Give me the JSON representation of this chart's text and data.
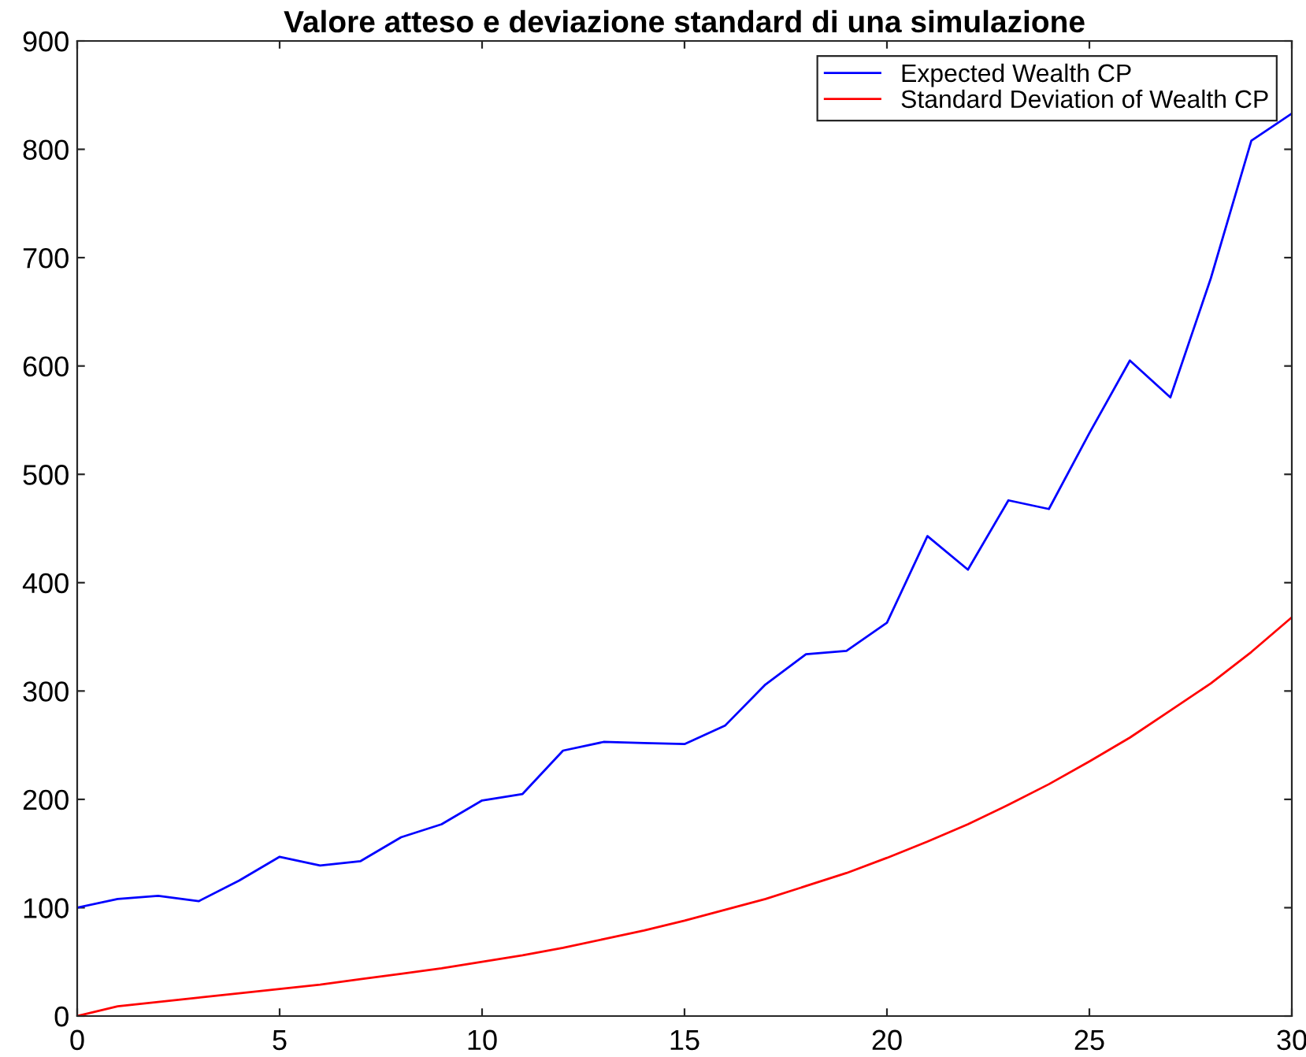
{
  "chart_data": {
    "type": "line",
    "title": "Valore atteso e deviazione standard di una simulazione",
    "x": [
      0,
      1,
      2,
      3,
      4,
      5,
      6,
      7,
      8,
      9,
      10,
      11,
      12,
      13,
      14,
      15,
      16,
      17,
      18,
      19,
      20,
      21,
      22,
      23,
      24,
      25,
      26,
      27,
      28,
      29,
      30
    ],
    "series": [
      {
        "name": "Expected Wealth CP",
        "color": "#0000ff",
        "values": [
          100,
          108,
          111,
          106,
          125,
          147,
          139,
          143,
          165,
          177,
          199,
          205,
          245,
          253,
          252,
          251,
          268,
          306,
          334,
          337,
          363,
          443,
          412,
          476,
          468,
          538,
          605,
          571,
          681,
          808,
          833
        ]
      },
      {
        "name": "Standard Deviation of Wealth CP",
        "color": "#ff0000",
        "values": [
          0,
          9,
          13,
          17,
          21,
          25,
          29,
          34,
          39,
          44,
          50,
          56,
          63,
          71,
          79,
          88,
          98,
          108,
          120,
          132,
          146,
          161,
          177,
          195,
          214,
          235,
          257,
          282,
          307,
          336,
          368
        ]
      }
    ],
    "xlim": [
      0,
      30
    ],
    "xticks": [
      0,
      5,
      10,
      15,
      20,
      25,
      30
    ],
    "ylim": [
      0,
      900
    ],
    "yticks": [
      0,
      100,
      200,
      300,
      400,
      500,
      600,
      700,
      800,
      900
    ],
    "grid": false,
    "legend": "top right",
    "marker": "none",
    "line_style": "solid"
  }
}
